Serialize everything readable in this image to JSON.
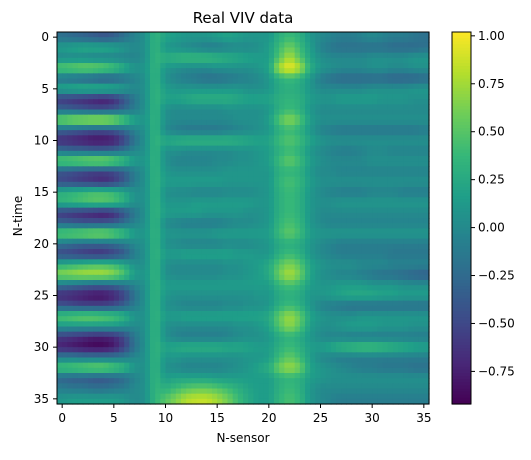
{
  "chart_data": {
    "type": "heatmap",
    "title": "Real VIV data",
    "xlabel": "N-sensor",
    "ylabel": "N-time",
    "xlim": [
      -0.5,
      35.5
    ],
    "ylim": [
      35.5,
      -0.5
    ],
    "x_ticks": [
      0,
      5,
      10,
      15,
      20,
      25,
      30,
      35
    ],
    "x_tick_labels": [
      "0",
      "5",
      "10",
      "15",
      "20",
      "25",
      "30",
      "35"
    ],
    "y_ticks": [
      0,
      5,
      10,
      15,
      20,
      25,
      30,
      35
    ],
    "y_tick_labels": [
      "0",
      "5",
      "10",
      "15",
      "20",
      "25",
      "30",
      "35"
    ],
    "colormap": "viridis",
    "interpolation": "bicubic",
    "vmin": -0.92,
    "vmax": 1.02,
    "colorbar_ticks": [
      1.0,
      0.75,
      0.5,
      0.25,
      0.0,
      -0.25,
      -0.5,
      -0.75
    ],
    "colorbar_tick_labels": [
      "1.00",
      "0.75",
      "0.50",
      "0.25",
      "0.00",
      "−0.25",
      "−0.50",
      "−0.75"
    ],
    "grid": false,
    "grid_shape": [
      36,
      36
    ],
    "approximate_values": [
      [
        -0.2,
        -0.25,
        -0.3,
        -0.35,
        -0.4,
        -0.35,
        -0.2,
        -0.05,
        0.05,
        0.35,
        0.2,
        0.15,
        0.1,
        0.1,
        0.1,
        0.15,
        0.2,
        0.15,
        0.1,
        0.1,
        0.1,
        0.3,
        0.4,
        0.3,
        0.1,
        0.0,
        -0.05,
        -0.1,
        -0.1,
        -0.05,
        0.0,
        -0.05,
        -0.1,
        -0.1,
        -0.15,
        -0.2
      ],
      [
        0.15,
        0.2,
        0.25,
        0.25,
        0.25,
        0.2,
        0.1,
        0.0,
        0.05,
        0.35,
        0.1,
        0.05,
        0.0,
        -0.05,
        -0.1,
        -0.1,
        -0.05,
        0.0,
        0.0,
        0.05,
        0.15,
        0.4,
        0.6,
        0.4,
        0.15,
        -0.05,
        -0.15,
        -0.2,
        -0.2,
        -0.2,
        -0.2,
        -0.2,
        -0.25,
        -0.25,
        -0.25,
        -0.2
      ],
      [
        0.0,
        0.0,
        0.0,
        -0.05,
        -0.05,
        -0.05,
        -0.05,
        -0.05,
        0.05,
        0.35,
        0.3,
        0.35,
        0.4,
        0.4,
        0.4,
        0.35,
        0.3,
        0.25,
        0.2,
        0.15,
        0.15,
        0.5,
        0.8,
        0.5,
        0.2,
        0.05,
        0.0,
        0.0,
        0.0,
        0.0,
        0.05,
        0.05,
        0.05,
        0.05,
        0.1,
        0.1
      ],
      [
        0.55,
        0.6,
        0.65,
        0.65,
        0.6,
        0.5,
        0.3,
        0.1,
        0.1,
        0.35,
        0.1,
        0.05,
        0.0,
        0.0,
        0.0,
        0.05,
        0.05,
        0.05,
        0.05,
        0.1,
        0.2,
        0.8,
        1.0,
        0.8,
        0.3,
        0.1,
        0.05,
        0.0,
        0.0,
        0.0,
        0.05,
        0.05,
        0.0,
        0.0,
        0.05,
        0.05
      ],
      [
        -0.2,
        -0.25,
        -0.3,
        -0.35,
        -0.4,
        -0.35,
        -0.2,
        -0.05,
        0.05,
        0.35,
        0.05,
        -0.05,
        -0.1,
        -0.15,
        -0.2,
        -0.2,
        -0.15,
        -0.1,
        -0.05,
        0.0,
        0.1,
        0.3,
        0.4,
        0.3,
        0.1,
        -0.1,
        -0.2,
        -0.25,
        -0.25,
        -0.25,
        -0.25,
        -0.25,
        -0.3,
        -0.3,
        -0.3,
        -0.25
      ],
      [
        0.25,
        0.3,
        0.35,
        0.35,
        0.35,
        0.3,
        0.15,
        0.0,
        0.05,
        0.35,
        0.15,
        0.1,
        0.1,
        0.1,
        0.1,
        0.1,
        0.1,
        0.1,
        0.05,
        0.05,
        0.1,
        0.25,
        0.3,
        0.25,
        0.1,
        0.0,
        0.0,
        0.0,
        0.0,
        0.0,
        0.05,
        0.05,
        0.05,
        0.05,
        0.1,
        0.1
      ],
      [
        -0.6,
        -0.65,
        -0.7,
        -0.75,
        -0.8,
        -0.7,
        -0.45,
        -0.15,
        0.05,
        0.35,
        0.2,
        0.2,
        0.25,
        0.3,
        0.3,
        0.3,
        0.3,
        0.25,
        0.2,
        0.2,
        0.2,
        0.3,
        0.35,
        0.3,
        0.15,
        0.1,
        0.1,
        0.15,
        0.15,
        0.15,
        0.15,
        0.1,
        0.1,
        0.1,
        0.05,
        0.05
      ],
      [
        -0.3,
        -0.35,
        -0.4,
        -0.45,
        -0.45,
        -0.4,
        -0.25,
        -0.1,
        0.05,
        0.35,
        0.05,
        0.0,
        0.0,
        0.0,
        0.0,
        0.0,
        0.05,
        0.05,
        0.05,
        0.05,
        0.1,
        0.3,
        0.4,
        0.3,
        0.1,
        0.0,
        0.0,
        0.0,
        0.0,
        0.0,
        0.0,
        0.0,
        0.0,
        0.0,
        0.0,
        0.0
      ],
      [
        0.7,
        0.8,
        0.85,
        0.9,
        0.9,
        0.8,
        0.55,
        0.2,
        0.1,
        0.35,
        0.05,
        0.0,
        0.0,
        0.0,
        0.0,
        0.0,
        0.0,
        0.05,
        0.05,
        0.05,
        0.15,
        0.5,
        0.7,
        0.5,
        0.15,
        0.05,
        0.05,
        0.05,
        0.05,
        0.05,
        0.05,
        0.05,
        0.05,
        0.05,
        0.05,
        0.05
      ],
      [
        -0.3,
        -0.35,
        -0.4,
        -0.45,
        -0.45,
        -0.4,
        -0.25,
        -0.05,
        0.05,
        0.35,
        0.0,
        -0.1,
        -0.15,
        -0.15,
        -0.15,
        -0.15,
        -0.1,
        -0.05,
        0.0,
        0.05,
        0.1,
        0.3,
        0.4,
        0.3,
        0.1,
        -0.05,
        -0.1,
        -0.15,
        -0.15,
        -0.15,
        -0.15,
        -0.15,
        -0.15,
        -0.15,
        -0.15,
        -0.1
      ],
      [
        -0.7,
        -0.75,
        -0.8,
        -0.85,
        -0.85,
        -0.8,
        -0.55,
        -0.2,
        0.05,
        0.35,
        0.25,
        0.3,
        0.35,
        0.35,
        0.35,
        0.35,
        0.35,
        0.3,
        0.25,
        0.2,
        0.2,
        0.4,
        0.5,
        0.4,
        0.2,
        0.1,
        0.05,
        0.05,
        0.05,
        0.05,
        0.05,
        0.05,
        0.05,
        0.05,
        0.05,
        0.05
      ],
      [
        -0.2,
        -0.25,
        -0.25,
        -0.3,
        -0.3,
        -0.25,
        -0.15,
        0.0,
        0.05,
        0.35,
        0.05,
        0.05,
        0.0,
        0.0,
        0.0,
        0.0,
        0.0,
        0.05,
        0.05,
        0.1,
        0.15,
        0.3,
        0.4,
        0.3,
        0.1,
        0.0,
        -0.05,
        -0.1,
        -0.1,
        -0.05,
        0.0,
        0.0,
        -0.05,
        -0.05,
        -0.05,
        -0.05
      ],
      [
        0.6,
        0.65,
        0.7,
        0.75,
        0.75,
        0.65,
        0.45,
        0.15,
        0.1,
        0.35,
        0.05,
        -0.05,
        -0.05,
        -0.05,
        -0.05,
        0.0,
        0.0,
        0.05,
        0.05,
        0.1,
        0.15,
        0.4,
        0.55,
        0.4,
        0.15,
        0.05,
        0.0,
        0.0,
        0.0,
        0.0,
        0.05,
        0.05,
        0.05,
        0.05,
        0.05,
        0.05
      ],
      [
        -0.4,
        -0.45,
        -0.5,
        -0.55,
        -0.55,
        -0.5,
        -0.35,
        -0.1,
        0.05,
        0.35,
        0.1,
        0.05,
        0.05,
        0.05,
        0.05,
        0.05,
        0.1,
        0.1,
        0.1,
        0.1,
        0.1,
        0.3,
        0.35,
        0.3,
        0.1,
        0.0,
        0.0,
        -0.05,
        -0.05,
        -0.05,
        -0.05,
        -0.05,
        -0.05,
        -0.05,
        -0.05,
        -0.05
      ],
      [
        -0.5,
        -0.55,
        -0.6,
        -0.65,
        -0.7,
        -0.6,
        -0.4,
        -0.1,
        0.05,
        0.35,
        0.15,
        0.15,
        0.15,
        0.15,
        0.15,
        0.15,
        0.1,
        0.1,
        0.1,
        0.1,
        0.1,
        0.35,
        0.45,
        0.35,
        0.15,
        0.05,
        0.05,
        0.05,
        0.05,
        0.05,
        0.05,
        0.05,
        0.05,
        0.05,
        0.05,
        0.05
      ],
      [
        0.3,
        0.35,
        0.4,
        0.45,
        0.45,
        0.4,
        0.25,
        0.05,
        0.05,
        0.35,
        0.05,
        0.0,
        0.0,
        -0.05,
        -0.05,
        -0.05,
        0.0,
        0.0,
        0.0,
        0.05,
        0.1,
        0.3,
        0.4,
        0.3,
        0.1,
        0.0,
        -0.05,
        -0.1,
        -0.1,
        -0.1,
        -0.05,
        -0.05,
        -0.05,
        -0.1,
        -0.1,
        -0.1
      ],
      [
        0.35,
        0.4,
        0.45,
        0.5,
        0.5,
        0.45,
        0.3,
        0.05,
        0.05,
        0.35,
        0.1,
        0.1,
        0.1,
        0.15,
        0.15,
        0.15,
        0.15,
        0.15,
        0.15,
        0.1,
        0.1,
        0.3,
        0.4,
        0.3,
        0.1,
        0.05,
        0.05,
        0.1,
        0.1,
        0.1,
        0.1,
        0.1,
        0.1,
        0.1,
        0.1,
        0.1
      ],
      [
        -0.6,
        -0.65,
        -0.7,
        -0.75,
        -0.8,
        -0.7,
        -0.45,
        -0.15,
        0.05,
        0.35,
        0.15,
        0.15,
        0.15,
        0.15,
        0.1,
        0.1,
        0.1,
        0.1,
        0.05,
        0.05,
        0.1,
        0.3,
        0.4,
        0.3,
        0.1,
        0.0,
        0.0,
        0.0,
        0.0,
        0.0,
        0.0,
        0.0,
        0.0,
        0.0,
        0.0,
        0.0
      ],
      [
        -0.3,
        -0.35,
        -0.4,
        -0.4,
        -0.4,
        -0.35,
        -0.2,
        -0.05,
        0.05,
        0.35,
        0.0,
        -0.05,
        -0.1,
        -0.1,
        -0.1,
        -0.1,
        -0.05,
        0.0,
        0.0,
        0.05,
        0.1,
        0.35,
        0.45,
        0.35,
        0.1,
        0.0,
        -0.05,
        -0.05,
        -0.05,
        -0.05,
        -0.05,
        -0.05,
        -0.05,
        -0.05,
        -0.05,
        -0.05
      ],
      [
        0.6,
        0.65,
        0.7,
        0.75,
        0.75,
        0.65,
        0.45,
        0.15,
        0.1,
        0.35,
        0.1,
        0.1,
        0.1,
        0.1,
        0.1,
        0.15,
        0.15,
        0.15,
        0.15,
        0.15,
        0.15,
        0.4,
        0.55,
        0.4,
        0.15,
        0.1,
        0.1,
        0.1,
        0.1,
        0.1,
        0.1,
        0.1,
        0.1,
        0.1,
        0.1,
        0.1
      ],
      [
        -0.2,
        -0.25,
        -0.3,
        -0.3,
        -0.3,
        -0.25,
        -0.15,
        0.0,
        0.05,
        0.35,
        0.05,
        0.0,
        -0.05,
        -0.05,
        -0.05,
        -0.05,
        0.0,
        0.0,
        0.0,
        0.05,
        0.1,
        0.25,
        0.3,
        0.25,
        0.1,
        0.0,
        -0.05,
        -0.1,
        -0.1,
        -0.1,
        -0.1,
        -0.1,
        -0.1,
        -0.1,
        -0.1,
        -0.1
      ],
      [
        -0.5,
        -0.55,
        -0.6,
        -0.65,
        -0.65,
        -0.55,
        -0.4,
        -0.1,
        0.05,
        0.35,
        0.15,
        0.15,
        0.2,
        0.2,
        0.2,
        0.2,
        0.2,
        0.15,
        0.15,
        0.1,
        0.1,
        0.3,
        0.4,
        0.3,
        0.1,
        0.0,
        -0.05,
        -0.1,
        -0.1,
        -0.1,
        -0.1,
        -0.1,
        -0.15,
        -0.15,
        -0.15,
        -0.15
      ],
      [
        0.3,
        0.35,
        0.4,
        0.45,
        0.45,
        0.4,
        0.25,
        0.05,
        0.05,
        0.35,
        0.05,
        0.0,
        0.0,
        0.0,
        0.0,
        0.0,
        0.05,
        0.05,
        0.1,
        0.15,
        0.25,
        0.5,
        0.65,
        0.5,
        0.2,
        0.1,
        0.05,
        0.05,
        0.05,
        0.0,
        0.0,
        0.0,
        -0.05,
        -0.05,
        -0.05,
        -0.05
      ],
      [
        0.7,
        0.75,
        0.8,
        0.8,
        0.8,
        0.7,
        0.5,
        0.15,
        0.1,
        0.35,
        0.05,
        0.0,
        0.0,
        0.0,
        0.0,
        0.0,
        0.05,
        0.05,
        0.1,
        0.15,
        0.25,
        0.6,
        0.8,
        0.6,
        0.2,
        0.05,
        0.0,
        -0.05,
        -0.05,
        -0.1,
        -0.15,
        -0.2,
        -0.2,
        -0.25,
        -0.3,
        -0.35
      ],
      [
        -0.2,
        -0.25,
        -0.3,
        -0.35,
        -0.35,
        -0.3,
        -0.2,
        -0.05,
        0.05,
        0.35,
        0.15,
        0.15,
        0.15,
        0.15,
        0.15,
        0.15,
        0.15,
        0.15,
        0.15,
        0.15,
        0.15,
        0.35,
        0.45,
        0.35,
        0.15,
        0.1,
        0.1,
        0.15,
        0.15,
        0.15,
        0.1,
        0.1,
        0.1,
        0.05,
        0.05,
        0.05
      ],
      [
        -0.7,
        -0.75,
        -0.8,
        -0.85,
        -0.85,
        -0.75,
        -0.55,
        -0.2,
        0.05,
        0.35,
        0.1,
        0.05,
        0.05,
        0.05,
        0.05,
        0.05,
        0.05,
        0.05,
        0.05,
        0.1,
        0.1,
        0.25,
        0.3,
        0.25,
        0.1,
        0.1,
        0.15,
        0.2,
        0.25,
        0.25,
        0.25,
        0.2,
        0.2,
        0.15,
        0.15,
        0.15
      ],
      [
        -0.4,
        -0.45,
        -0.5,
        -0.5,
        -0.5,
        -0.45,
        -0.3,
        -0.1,
        0.05,
        0.35,
        0.05,
        0.0,
        -0.05,
        -0.05,
        -0.05,
        -0.05,
        0.0,
        0.0,
        0.05,
        0.05,
        0.1,
        0.3,
        0.4,
        0.3,
        0.1,
        -0.05,
        -0.1,
        -0.15,
        -0.2,
        -0.2,
        -0.2,
        -0.2,
        -0.2,
        -0.2,
        -0.2,
        -0.2
      ],
      [
        0.5,
        0.55,
        0.6,
        0.6,
        0.55,
        0.5,
        0.35,
        0.1,
        0.05,
        0.35,
        0.15,
        0.15,
        0.2,
        0.2,
        0.2,
        0.2,
        0.2,
        0.2,
        0.2,
        0.2,
        0.25,
        0.55,
        0.75,
        0.55,
        0.2,
        0.1,
        0.05,
        0.05,
        0.05,
        0.1,
        0.1,
        0.1,
        0.1,
        0.1,
        0.1,
        0.1
      ],
      [
        0.1,
        0.1,
        0.1,
        0.1,
        0.1,
        0.1,
        0.05,
        0.0,
        0.05,
        0.35,
        0.05,
        0.0,
        0.0,
        0.0,
        0.0,
        0.0,
        0.0,
        0.05,
        0.05,
        0.1,
        0.2,
        0.5,
        0.7,
        0.5,
        0.15,
        0.05,
        0.05,
        0.1,
        0.15,
        0.15,
        0.15,
        0.1,
        0.1,
        0.1,
        0.05,
        0.05
      ],
      [
        -0.6,
        -0.65,
        -0.7,
        -0.75,
        -0.75,
        -0.7,
        -0.5,
        -0.15,
        0.05,
        0.35,
        0.05,
        -0.05,
        -0.1,
        -0.1,
        -0.1,
        -0.1,
        -0.05,
        0.0,
        0.05,
        0.05,
        0.1,
        0.25,
        0.35,
        0.25,
        0.1,
        0.0,
        -0.05,
        -0.05,
        -0.1,
        -0.1,
        -0.1,
        -0.1,
        -0.1,
        -0.1,
        -0.1,
        -0.1
      ],
      [
        -0.75,
        -0.8,
        -0.85,
        -0.9,
        -0.9,
        -0.8,
        -0.55,
        -0.2,
        0.05,
        0.35,
        0.2,
        0.25,
        0.3,
        0.3,
        0.3,
        0.3,
        0.25,
        0.25,
        0.2,
        0.15,
        0.15,
        0.3,
        0.4,
        0.3,
        0.15,
        0.15,
        0.25,
        0.35,
        0.4,
        0.45,
        0.45,
        0.4,
        0.35,
        0.3,
        0.25,
        0.2
      ],
      [
        -0.1,
        -0.1,
        -0.15,
        -0.15,
        -0.15,
        -0.15,
        -0.1,
        0.0,
        0.05,
        0.35,
        0.1,
        0.1,
        0.05,
        0.05,
        0.05,
        0.05,
        0.05,
        0.05,
        0.1,
        0.1,
        0.15,
        0.4,
        0.55,
        0.4,
        0.15,
        0.0,
        -0.05,
        -0.1,
        -0.1,
        -0.1,
        -0.1,
        -0.1,
        -0.1,
        -0.1,
        -0.1,
        -0.1
      ],
      [
        0.5,
        0.55,
        0.6,
        0.65,
        0.65,
        0.55,
        0.4,
        0.1,
        0.05,
        0.35,
        0.05,
        0.0,
        -0.05,
        -0.05,
        -0.05,
        -0.05,
        0.0,
        0.05,
        0.1,
        0.2,
        0.3,
        0.6,
        0.75,
        0.6,
        0.2,
        0.1,
        0.05,
        0.0,
        -0.05,
        -0.1,
        -0.1,
        -0.15,
        -0.15,
        -0.15,
        -0.2,
        -0.2
      ],
      [
        -0.3,
        -0.35,
        -0.35,
        -0.4,
        -0.4,
        -0.35,
        -0.25,
        -0.05,
        0.05,
        0.35,
        0.15,
        0.2,
        0.2,
        0.2,
        0.2,
        0.15,
        0.15,
        0.15,
        0.15,
        0.15,
        0.15,
        0.3,
        0.35,
        0.3,
        0.15,
        0.1,
        0.05,
        0.05,
        0.05,
        0.05,
        0.05,
        0.05,
        0.05,
        0.05,
        0.05,
        0.05
      ],
      [
        -0.1,
        -0.15,
        -0.15,
        -0.2,
        -0.2,
        -0.15,
        -0.1,
        0.0,
        0.05,
        0.35,
        0.3,
        0.4,
        0.5,
        0.55,
        0.55,
        0.5,
        0.4,
        0.3,
        0.2,
        0.15,
        0.15,
        0.3,
        0.4,
        0.3,
        0.1,
        0.0,
        0.0,
        0.0,
        0.0,
        0.0,
        0.0,
        0.0,
        0.0,
        0.0,
        0.0,
        0.0
      ],
      [
        0.1,
        0.15,
        0.15,
        0.15,
        0.15,
        0.15,
        0.1,
        0.0,
        0.05,
        0.35,
        0.5,
        0.65,
        0.8,
        0.85,
        0.85,
        0.75,
        0.6,
        0.4,
        0.25,
        0.15,
        0.15,
        0.35,
        0.45,
        0.35,
        0.1,
        0.0,
        -0.05,
        -0.1,
        -0.1,
        -0.1,
        -0.1,
        -0.1,
        -0.1,
        -0.1,
        -0.1,
        -0.1
      ]
    ]
  }
}
